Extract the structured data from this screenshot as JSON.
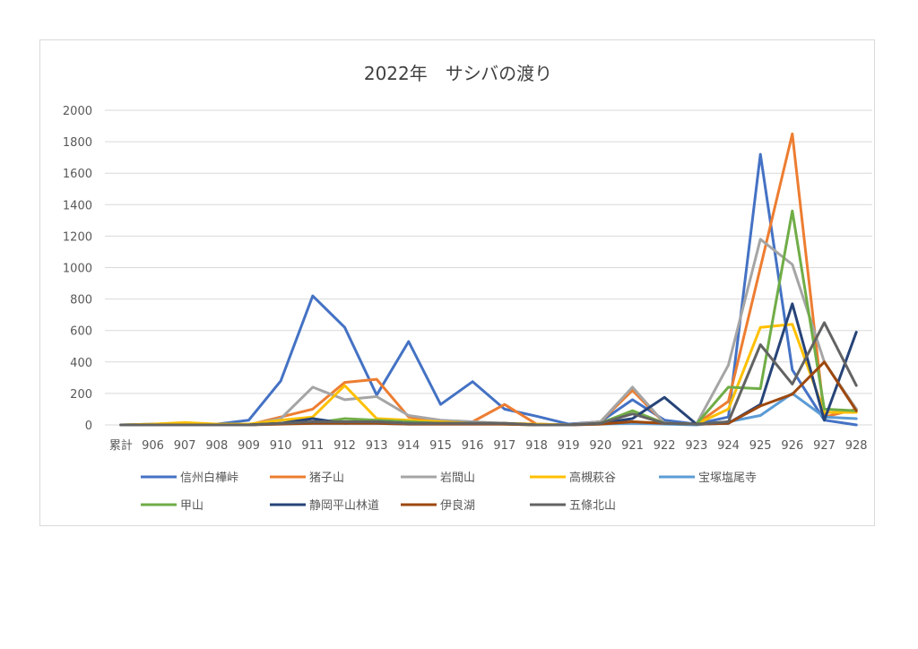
{
  "chart_data": {
    "type": "line",
    "title": "2022年　サシバの渡り",
    "xlabel": "",
    "ylabel": "",
    "ylim": [
      0,
      2000
    ],
    "yticks": [
      0,
      200,
      400,
      600,
      800,
      1000,
      1200,
      1400,
      1600,
      1800,
      2000
    ],
    "grid": true,
    "legend_position": "bottom",
    "categories": [
      "累計",
      "906",
      "907",
      "908",
      "909",
      "910",
      "911",
      "912",
      "913",
      "914",
      "915",
      "916",
      "917",
      "918",
      "919",
      "920",
      "921",
      "922",
      "923",
      "924",
      "925",
      "926",
      "927",
      "928"
    ],
    "series": [
      {
        "name": "信州白樺峠",
        "color": "#4472c4",
        "values": [
          0,
          5,
          5,
          5,
          30,
          280,
          820,
          620,
          190,
          530,
          130,
          275,
          100,
          55,
          5,
          20,
          160,
          30,
          5,
          50,
          1720,
          350,
          30,
          0
        ]
      },
      {
        "name": "猪子山",
        "color": "#ed7d31",
        "values": [
          0,
          0,
          0,
          0,
          0,
          50,
          100,
          270,
          290,
          50,
          20,
          20,
          130,
          5,
          0,
          20,
          220,
          10,
          5,
          150,
          1000,
          1850,
          50,
          100
        ]
      },
      {
        "name": "岩間山",
        "color": "#a5a5a5",
        "values": [
          0,
          0,
          0,
          0,
          0,
          40,
          240,
          160,
          180,
          60,
          30,
          20,
          10,
          5,
          0,
          20,
          240,
          10,
          5,
          380,
          1180,
          1020,
          400,
          100
        ]
      },
      {
        "name": "高槻萩谷",
        "color": "#ffc000",
        "values": [
          0,
          5,
          15,
          5,
          5,
          30,
          50,
          250,
          40,
          30,
          20,
          10,
          10,
          5,
          0,
          10,
          20,
          10,
          5,
          100,
          620,
          640,
          80,
          80
        ]
      },
      {
        "name": "宝塚塩尾寺",
        "color": "#5b9bd5",
        "values": [
          0,
          0,
          0,
          0,
          0,
          10,
          10,
          10,
          10,
          5,
          5,
          5,
          5,
          0,
          0,
          5,
          10,
          5,
          0,
          20,
          60,
          200,
          50,
          40
        ]
      },
      {
        "name": "甲山",
        "color": "#70ad47",
        "values": [
          0,
          0,
          0,
          0,
          0,
          10,
          10,
          40,
          30,
          20,
          10,
          10,
          5,
          0,
          0,
          10,
          90,
          10,
          5,
          240,
          230,
          1360,
          100,
          90
        ]
      },
      {
        "name": "静岡平山林道",
        "color": "#264478",
        "values": [
          0,
          0,
          0,
          0,
          0,
          10,
          40,
          10,
          20,
          10,
          10,
          10,
          10,
          0,
          0,
          10,
          40,
          175,
          5,
          10,
          130,
          770,
          30,
          590
        ]
      },
      {
        "name": "伊良湖",
        "color": "#9e480e",
        "values": [
          0,
          0,
          0,
          0,
          0,
          5,
          10,
          10,
          10,
          5,
          5,
          5,
          5,
          0,
          0,
          5,
          20,
          10,
          5,
          10,
          120,
          195,
          400,
          90
        ]
      },
      {
        "name": "五條北山",
        "color": "#636363",
        "values": [
          0,
          0,
          0,
          0,
          0,
          10,
          20,
          20,
          20,
          10,
          10,
          10,
          10,
          0,
          0,
          10,
          70,
          10,
          5,
          20,
          510,
          260,
          650,
          250
        ]
      }
    ]
  }
}
